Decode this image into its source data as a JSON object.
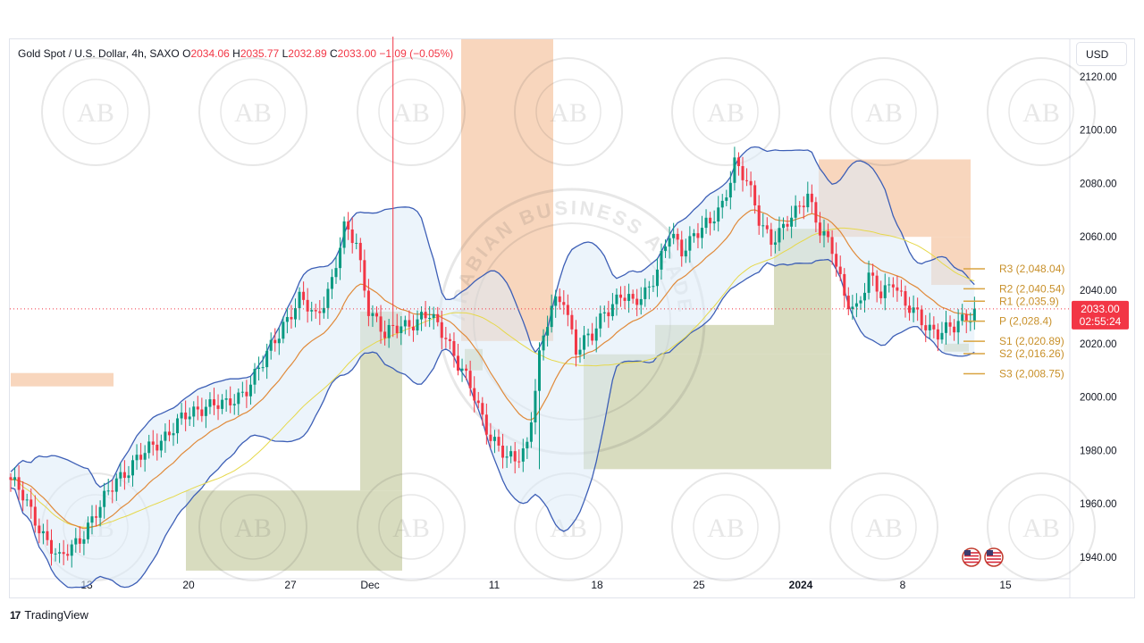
{
  "header": {
    "symbol": "Gold Spot / U.S. Dollar, 4h, SAXO",
    "open_label": "O",
    "open": "2034.06",
    "high_label": "H",
    "high": "2035.77",
    "low_label": "L",
    "low": "2032.89",
    "close_label": "C",
    "close": "2033.00",
    "change": "−1.09 (−0.05%)"
  },
  "currency": "USD",
  "price_tag": {
    "price": "2033.00",
    "countdown": "02:55:24"
  },
  "branding": {
    "tradingview": "TradingView",
    "watermark": "ARABIAN BUSINESS ACADEMY",
    "logo_initials": "AB"
  },
  "colors": {
    "up": "#089981",
    "down": "#f23645",
    "band": "#3d5fb6",
    "ema": "#e08a3a",
    "sma": "#e6d84a",
    "supply": "#f5c6a3",
    "demand": "#c9cfa6",
    "pivot": "#d9a441"
  },
  "chart_data": {
    "type": "candlestick",
    "title": "Gold Spot / U.S. Dollar, 4h, SAXO",
    "ylabel": "USD",
    "ylim": [
      1930,
      2130
    ],
    "y_ticks": [
      "2120.00",
      "2100.00",
      "2080.00",
      "2060.00",
      "2040.00",
      "2020.00",
      "2000.00",
      "1980.00",
      "1960.00",
      "1940.00"
    ],
    "x_ticks": [
      "13",
      "20",
      "27",
      "Dec",
      "11",
      "18",
      "25",
      "2024",
      "8",
      "15"
    ],
    "anchor_closes": [
      [
        0,
        1969
      ],
      [
        3,
        1962
      ],
      [
        7,
        1952
      ],
      [
        12,
        1938
      ],
      [
        17,
        1948
      ],
      [
        22,
        1958
      ],
      [
        26,
        1970
      ],
      [
        32,
        1977
      ],
      [
        37,
        1985
      ],
      [
        43,
        1992
      ],
      [
        48,
        1998
      ],
      [
        53,
        1996
      ],
      [
        58,
        2004
      ],
      [
        62,
        2012
      ],
      [
        67,
        2028
      ],
      [
        71,
        2036
      ],
      [
        75,
        2030
      ],
      [
        79,
        2044
      ],
      [
        82,
        2062
      ],
      [
        85,
        2058
      ],
      [
        88,
        2034
      ],
      [
        92,
        2022
      ],
      [
        96,
        2028
      ],
      [
        100,
        2028
      ],
      [
        103,
        2030
      ],
      [
        107,
        2024
      ],
      [
        110,
        2012
      ],
      [
        114,
        2000
      ],
      [
        118,
        1986
      ],
      [
        122,
        1976
      ],
      [
        124,
        1976
      ],
      [
        127,
        1983
      ],
      [
        130,
        2015
      ],
      [
        133,
        2033
      ],
      [
        136,
        2038
      ],
      [
        139,
        2018
      ],
      [
        143,
        2022
      ],
      [
        146,
        2033
      ],
      [
        150,
        2038
      ],
      [
        153,
        2034
      ],
      [
        156,
        2040
      ],
      [
        159,
        2048
      ],
      [
        162,
        2060
      ],
      [
        165,
        2055
      ],
      [
        168,
        2062
      ],
      [
        172,
        2064
      ],
      [
        175,
        2072
      ],
      [
        178,
        2089
      ],
      [
        181,
        2080
      ],
      [
        184,
        2066
      ],
      [
        187,
        2060
      ],
      [
        190,
        2063
      ],
      [
        193,
        2068
      ],
      [
        196,
        2077
      ],
      [
        199,
        2063
      ],
      [
        202,
        2054
      ],
      [
        205,
        2038
      ],
      [
        208,
        2034
      ],
      [
        211,
        2044
      ],
      [
        214,
        2038
      ],
      [
        217,
        2045
      ],
      [
        220,
        2034
      ],
      [
        224,
        2028
      ],
      [
        228,
        2025
      ],
      [
        232,
        2025
      ],
      [
        235,
        2030
      ],
      [
        237,
        2033
      ]
    ],
    "pivot_levels": [
      {
        "name": "R3",
        "value": 2048.04,
        "label": "R3 (2,048.04)"
      },
      {
        "name": "R2",
        "value": 2040.54,
        "label": "R2 (2,040.54)"
      },
      {
        "name": "R1",
        "value": 2035.9,
        "label": "R1 (2,035.9)"
      },
      {
        "name": "P",
        "value": 2028.4,
        "label": "P (2,028.4)"
      },
      {
        "name": "S1",
        "value": 2020.89,
        "label": "S1 (2,020.89)"
      },
      {
        "name": "S2",
        "value": 2016.26,
        "label": "S2 (2,016.26)"
      },
      {
        "name": "S3",
        "value": 2008.75,
        "label": "S3 (2,008.75)"
      }
    ]
  }
}
